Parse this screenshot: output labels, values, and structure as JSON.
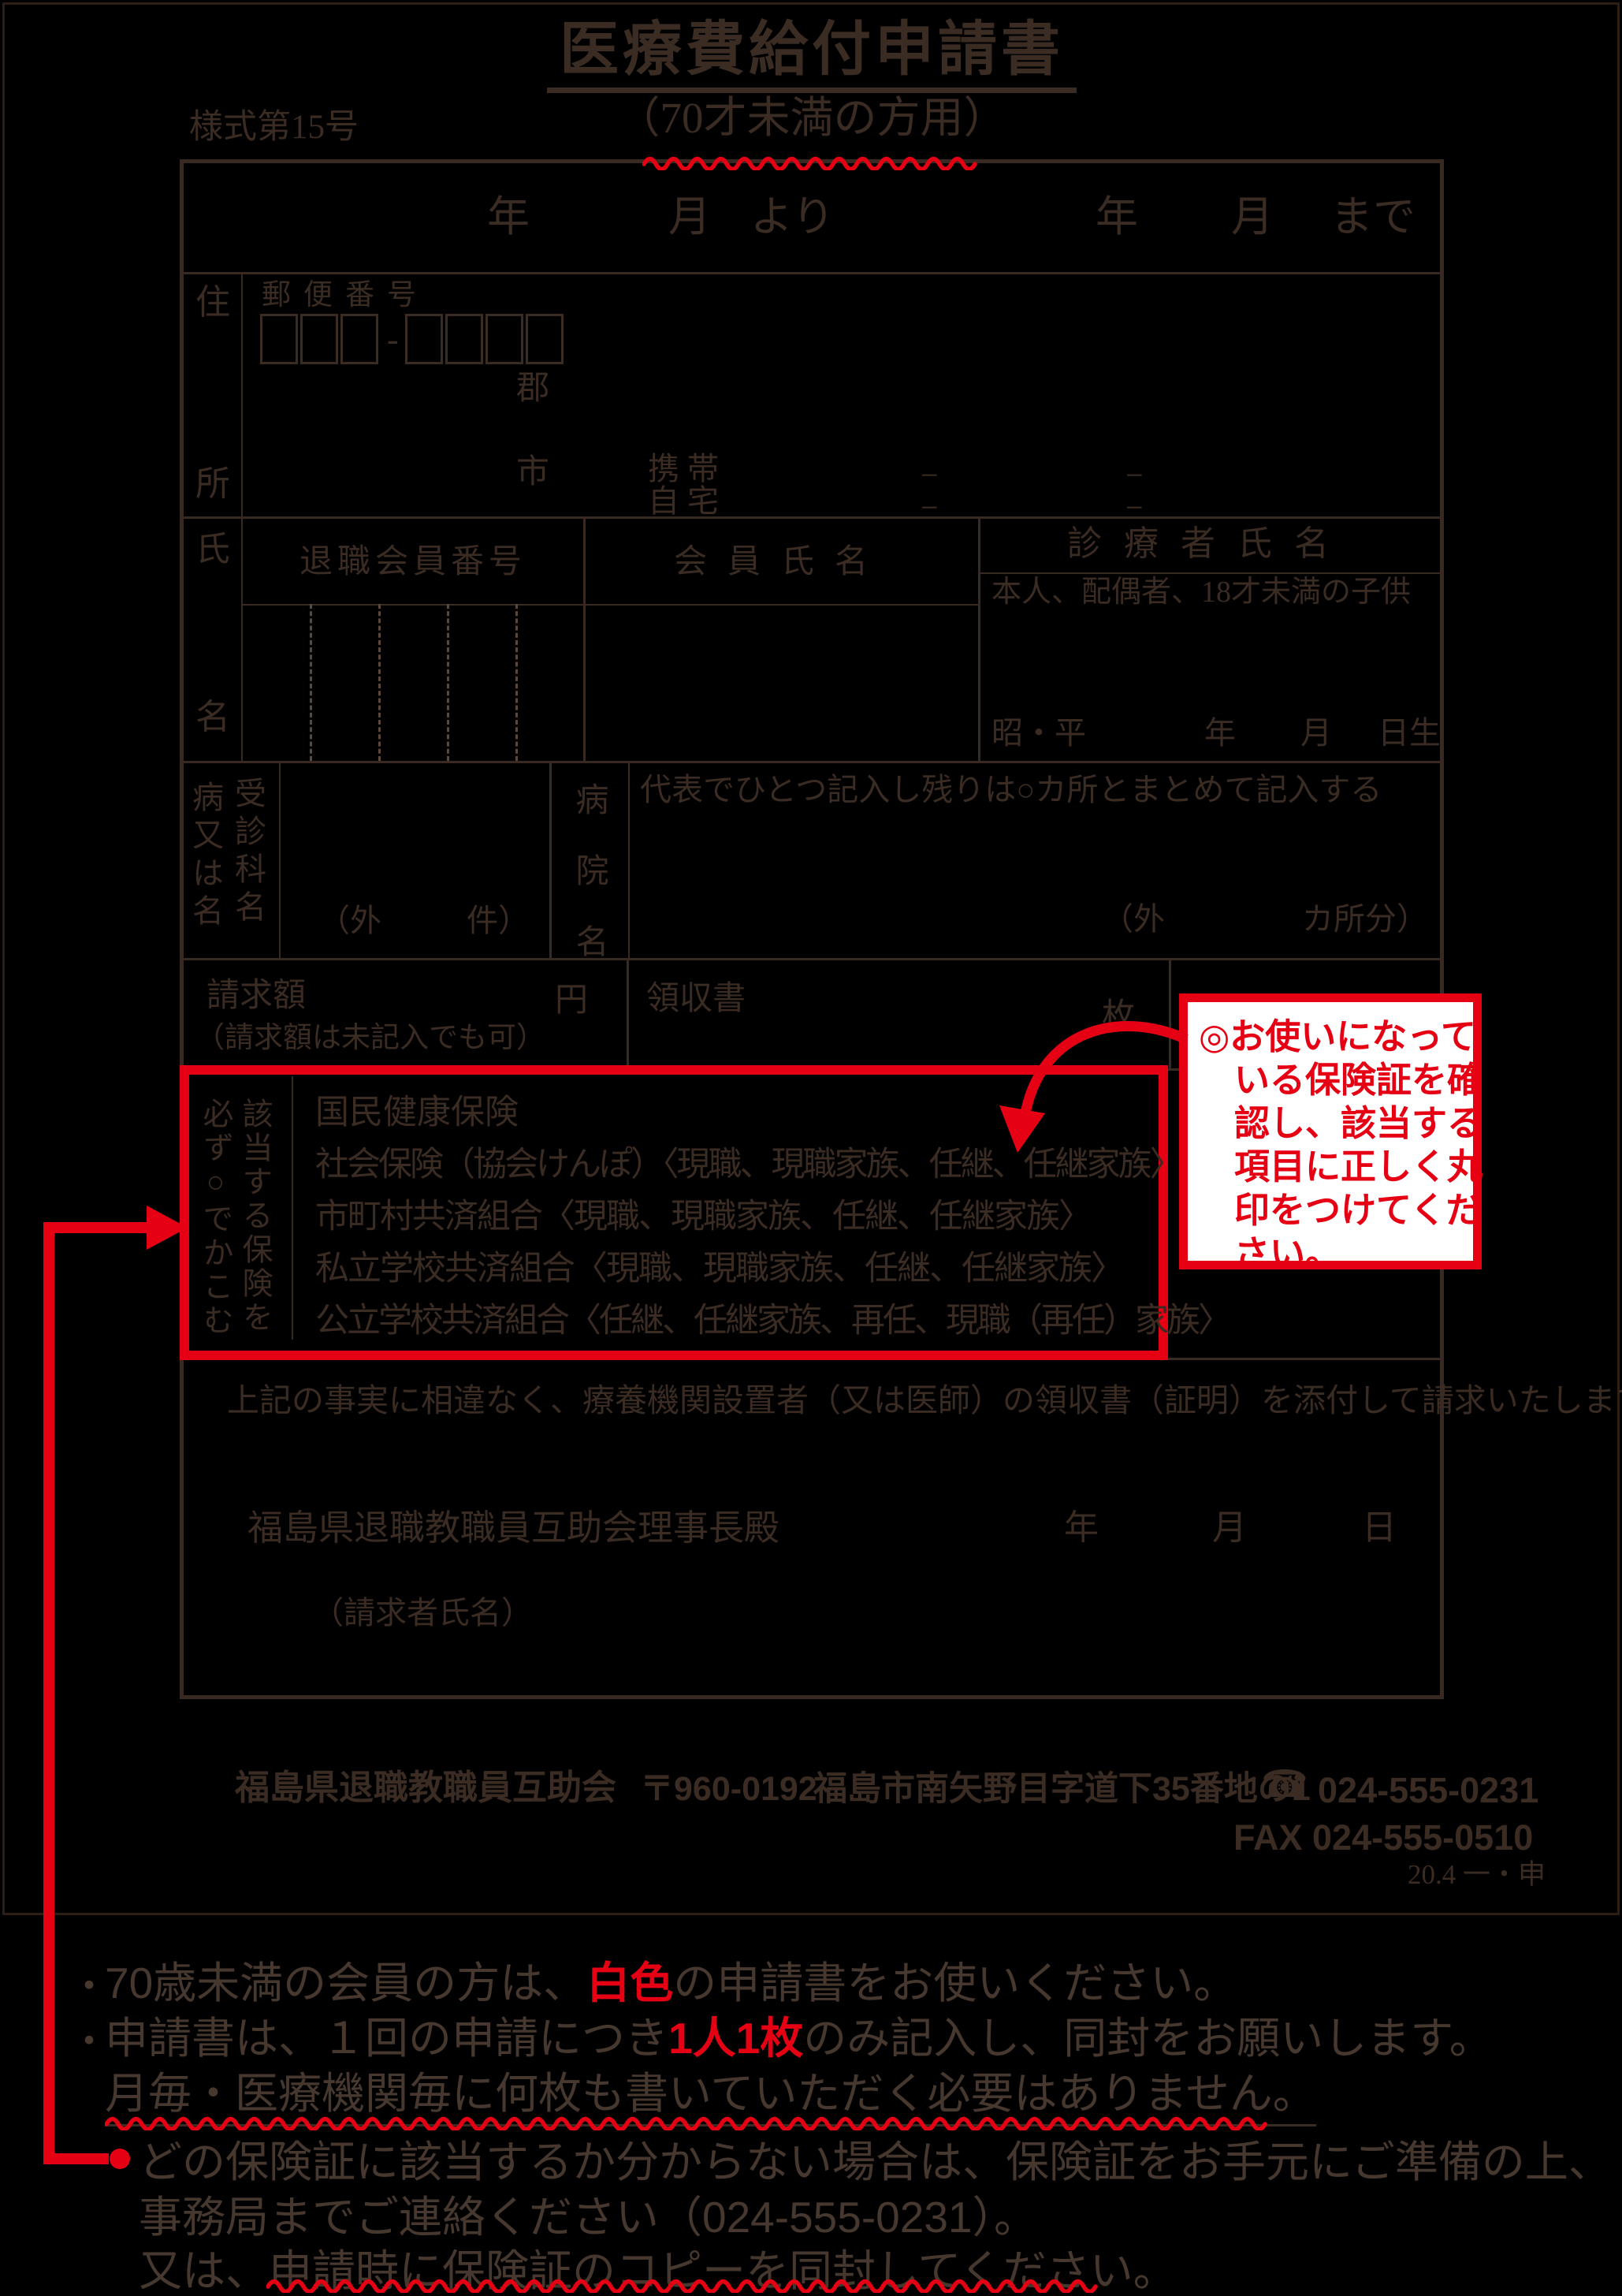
{
  "colors": {
    "background": "#000000",
    "ink": "#3a2b23",
    "red": "#e60013",
    "note_text": "#46382f",
    "white": "#ffffff"
  },
  "header": {
    "form_code": "様式第15号",
    "title": "医療費給付申請書",
    "subtitle": "（70才未満の方用）"
  },
  "period": {
    "year_from": "年",
    "month_from": "月",
    "from": "より",
    "year_to": "年",
    "month_to": "月",
    "to": "まで"
  },
  "address": {
    "label_top": "住",
    "label_bottom": "所",
    "postal_label": "郵便番号",
    "hyphen": "-",
    "county": "郡",
    "city": "市",
    "mobile": "携帯",
    "home": "自宅",
    "dash": "−"
  },
  "member": {
    "label_top": "氏",
    "label_bottom": "名",
    "no_header": "退職会員番号",
    "name_header": "会員氏名",
    "patient_header": "診療者氏名",
    "patient_sub": "本人、配偶者、18才未満の子供",
    "birth_era": "昭・平",
    "birth_year": "年",
    "birth_month": "月",
    "birth_day": "日生"
  },
  "disease": {
    "label_col_left": "病又は名",
    "label_col_right": "受診科名",
    "count_open": "（外",
    "count_close": "件）",
    "hospital_label": "病院名",
    "hospital_note": "代表でひとつ記入し残りは○カ所とまとめて記入する",
    "count2_open": "（外",
    "count2_close": "カ所分）"
  },
  "billing": {
    "amount": "請求額",
    "amount_note": "（請求額は未記入でも可）",
    "yen": "円",
    "receipt": "領収書",
    "sheets": "枚"
  },
  "insurance": {
    "label_col_right": "該当する保険を",
    "label_col_left": "必ず○でかこむ",
    "options": [
      "国民健康保険",
      "社会保険（協会けんぽ）〈現職、現職家族、任継、任継家族〉",
      "市町村共済組合〈現職、現職家族、任継、任継家族〉",
      "私立学校共済組合〈現職、現職家族、任継、任継家族〉",
      "公立学校共済組合〈任継、任継家族、再任、現職（再任）家族〉"
    ]
  },
  "declaration": {
    "statement": "上記の事実に相違なく、療養機関設置者（又は医師）の領収書（証明）を添付して請求いたします。",
    "addressee": "福島県退職教職員互助会理事長殿",
    "year": "年",
    "month": "月",
    "day": "日",
    "applicant": "（請求者氏名）"
  },
  "annotation": {
    "lines": [
      "◎お使いになって",
      "いる保険証を確",
      "認し、該当する",
      "項目に正しく丸",
      "印をつけてくだ",
      "さい。"
    ]
  },
  "footer": {
    "org": "福島県退職教職員互助会",
    "postal": "〒960-0192",
    "address": "福島市南矢野目字道下35番地の1",
    "phone_icon": "☎",
    "phone": "024-555-0231",
    "fax": "FAX 024-555-0510",
    "stamp": "20.4 一・申"
  },
  "notes": {
    "bullet": "・",
    "line1_pre": "70歳未満の会員の方は、",
    "line1_red": "白色",
    "line1_post": "の申請書をお使いください。",
    "line2_pre": "申請書は、１回の申請につき",
    "line2_red": "1人1枚",
    "line2_post": "のみ記入し、同封をお願いします。",
    "line3": "月毎・医療機関毎に何枚も書いていただく必要はありません。",
    "line4": "どの保険証に該当するか分からない場合は、保険証をお手元にご準備の上、",
    "line5": "事務局までご連絡ください（024-555-0231）。",
    "line6_pre": "又は、",
    "line6_wavy": "申請時に保険証のコピーを同封してください。"
  }
}
